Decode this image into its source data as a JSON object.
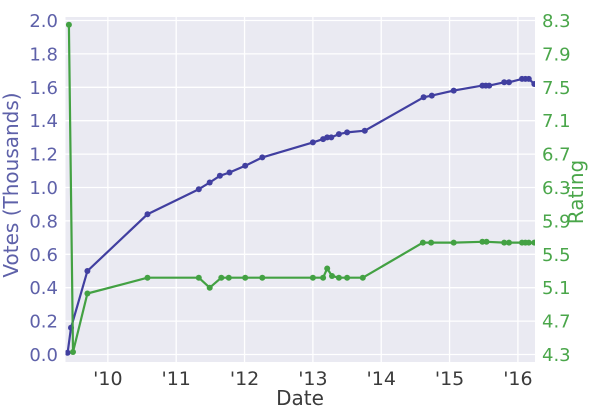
{
  "chart_data": {
    "type": "line",
    "title": "",
    "xlabel": "Date",
    "ylabel_left": "Votes (Thousands)",
    "ylabel_right": "Rating",
    "background_color": "#eaeaf2",
    "grid_color": "#ffffff",
    "grid": true,
    "x_range": [
      2009.38,
      2016.25
    ],
    "x_tick_values": [
      2010,
      2011,
      2012,
      2013,
      2014,
      2015,
      2016
    ],
    "x_tick_labels": [
      "'10",
      "'11",
      "'12",
      "'13",
      "'14",
      "'15",
      "'16"
    ],
    "left_axis": {
      "label": "Votes (Thousands)",
      "range": [
        0.0,
        2.0
      ],
      "tick_values": [
        0.0,
        0.2,
        0.4,
        0.6,
        0.8,
        1.0,
        1.2,
        1.4,
        1.6,
        1.8,
        2.0
      ],
      "tick_labels": [
        "0.0",
        "0.2",
        "0.4",
        "0.6",
        "0.8",
        "1.0",
        "1.2",
        "1.4",
        "1.6",
        "1.8",
        "2.0"
      ],
      "color": "#5e61a9"
    },
    "right_axis": {
      "label": "Rating",
      "range": [
        4.3,
        8.3
      ],
      "tick_values": [
        4.3,
        4.7,
        5.1,
        5.5,
        5.9,
        6.3,
        6.7,
        7.1,
        7.5,
        7.9,
        8.3
      ],
      "tick_labels": [
        "4.3",
        "4.7",
        "5.1",
        "5.5",
        "5.9",
        "6.3",
        "6.7",
        "7.1",
        "7.5",
        "7.9",
        "8.3"
      ],
      "color": "#4aa64a"
    },
    "series": [
      {
        "name": "Votes (Thousands)",
        "axis": "left",
        "color": "#413fa0",
        "marker": "circle",
        "points": [
          [
            2009.41,
            0.01
          ],
          [
            2009.46,
            0.16
          ],
          [
            2009.7,
            0.5
          ],
          [
            2010.58,
            0.84
          ],
          [
            2011.33,
            0.99
          ],
          [
            2011.49,
            1.03
          ],
          [
            2011.64,
            1.07
          ],
          [
            2011.78,
            1.09
          ],
          [
            2012.01,
            1.13
          ],
          [
            2012.26,
            1.18
          ],
          [
            2013.0,
            1.27
          ],
          [
            2013.15,
            1.29
          ],
          [
            2013.21,
            1.3
          ],
          [
            2013.27,
            1.3
          ],
          [
            2013.38,
            1.32
          ],
          [
            2013.5,
            1.33
          ],
          [
            2013.76,
            1.34
          ],
          [
            2014.62,
            1.54
          ],
          [
            2014.74,
            1.55
          ],
          [
            2015.06,
            1.58
          ],
          [
            2015.48,
            1.61
          ],
          [
            2015.53,
            1.61
          ],
          [
            2015.58,
            1.61
          ],
          [
            2015.8,
            1.63
          ],
          [
            2015.87,
            1.63
          ],
          [
            2016.06,
            1.65
          ],
          [
            2016.11,
            1.65
          ],
          [
            2016.16,
            1.65
          ],
          [
            2016.24,
            1.62
          ]
        ]
      },
      {
        "name": "Rating",
        "axis": "right",
        "color": "#43a143",
        "marker": "circle",
        "points": [
          [
            2009.43,
            8.25
          ],
          [
            2009.49,
            4.33
          ],
          [
            2009.7,
            5.03
          ],
          [
            2010.58,
            5.22
          ],
          [
            2011.33,
            5.22
          ],
          [
            2011.49,
            5.1
          ],
          [
            2011.66,
            5.22
          ],
          [
            2011.77,
            5.22
          ],
          [
            2012.01,
            5.22
          ],
          [
            2012.26,
            5.22
          ],
          [
            2013.0,
            5.22
          ],
          [
            2013.15,
            5.22
          ],
          [
            2013.21,
            5.33
          ],
          [
            2013.28,
            5.24
          ],
          [
            2013.38,
            5.22
          ],
          [
            2013.5,
            5.22
          ],
          [
            2013.73,
            5.22
          ],
          [
            2014.61,
            5.64
          ],
          [
            2014.73,
            5.64
          ],
          [
            2015.06,
            5.64
          ],
          [
            2015.48,
            5.65
          ],
          [
            2015.54,
            5.65
          ],
          [
            2015.8,
            5.64
          ],
          [
            2015.87,
            5.64
          ],
          [
            2016.06,
            5.64
          ],
          [
            2016.11,
            5.64
          ],
          [
            2016.16,
            5.64
          ],
          [
            2016.24,
            5.64
          ]
        ]
      }
    ]
  }
}
